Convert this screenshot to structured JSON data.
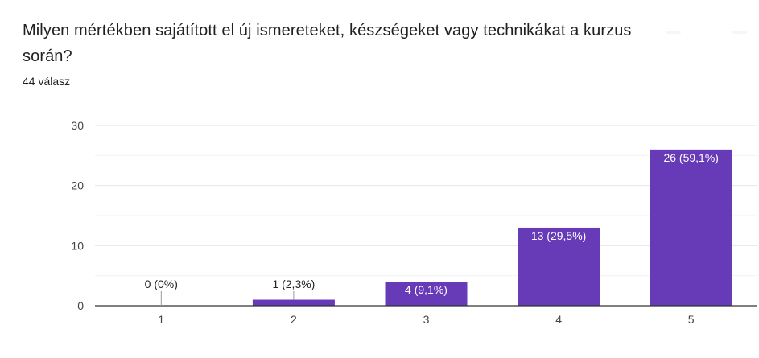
{
  "question": {
    "title": "Milyen mértékben sajátított el új ismereteket, készségeket vagy technikákat a kurzus során?",
    "response_count": "44 válasz"
  },
  "colors": {
    "bar": "#673ab7",
    "grid": "#eeeeee",
    "axis": "#333333",
    "text": "#202124"
  },
  "chart_data": {
    "type": "bar",
    "categories": [
      "1",
      "2",
      "3",
      "4",
      "5"
    ],
    "values": [
      0,
      1,
      4,
      13,
      26
    ],
    "data_labels": [
      "0 (0%)",
      "1 (2,3%)",
      "4 (9,1%)",
      "13 (29,5%)",
      "26 (59,1%)"
    ],
    "ylim": [
      0,
      30
    ],
    "yticks": [
      0,
      10,
      20,
      30
    ],
    "grid": true,
    "legend": "none"
  }
}
